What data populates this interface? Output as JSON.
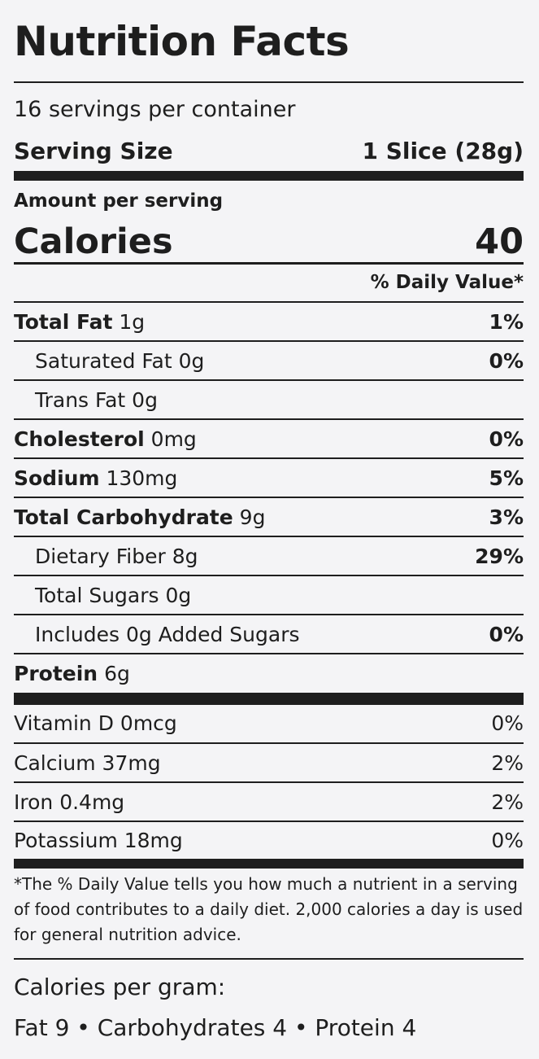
{
  "label": {
    "title": "Nutrition Facts",
    "servings_per_container": "16 servings per container",
    "serving_size_label": "Serving Size",
    "serving_size_value": "1 Slice (28g)",
    "amount_per_serving": "Amount per serving",
    "calories_label": "Calories",
    "calories_value": "40",
    "daily_value_header": "% Daily Value*",
    "nutrients": [
      {
        "name": "Total Fat",
        "amount": "1g",
        "dv": "1%"
      },
      {
        "name": "Saturated Fat",
        "amount": "0g",
        "dv": "0%"
      },
      {
        "name": "Trans Fat",
        "amount": "0g",
        "dv": ""
      },
      {
        "name": "Cholesterol",
        "amount": "0mg",
        "dv": "0%"
      },
      {
        "name": "Sodium",
        "amount": "130mg",
        "dv": "5%"
      },
      {
        "name": "Total Carbohydrate",
        "amount": "9g",
        "dv": "3%"
      },
      {
        "name": "Dietary Fiber",
        "amount": "8g",
        "dv": "29%"
      },
      {
        "name": "Total Sugars",
        "amount": "0g",
        "dv": ""
      },
      {
        "name": "Includes 0g Added Sugars",
        "amount": "",
        "dv": "0%"
      },
      {
        "name": "Protein",
        "amount": "6g",
        "dv": ""
      }
    ],
    "vitamins": [
      {
        "name": "Vitamin D 0mcg",
        "dv": "0%"
      },
      {
        "name": "Calcium 37mg",
        "dv": "2%"
      },
      {
        "name": "Iron 0.4mg",
        "dv": "2%"
      },
      {
        "name": "Potassium 18mg",
        "dv": "0%"
      }
    ],
    "footnote": "*The % Daily Value tells you how much a nutrient in a serving of food contributes to a daily diet. 2,000 calories a day is used for general nutrition advice.",
    "calories_per_gram_label": "Calories per gram:",
    "calories_per_gram_values": "Fat 9 • Carbohydrates 4 • Protein 4"
  }
}
